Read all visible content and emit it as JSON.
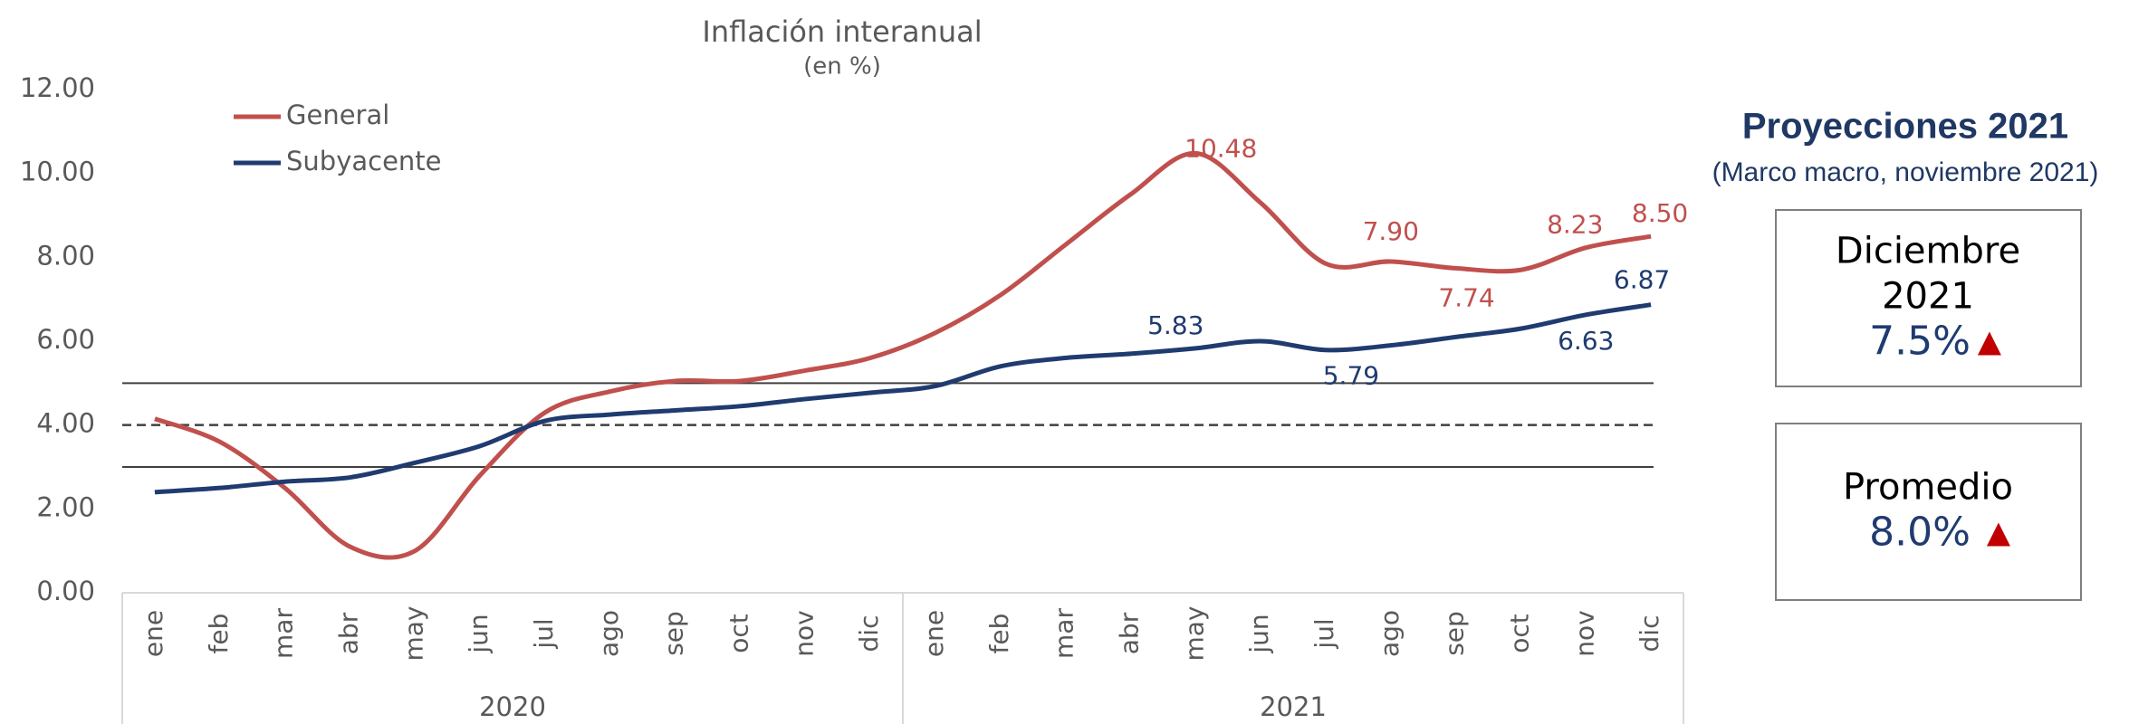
{
  "chart_data": {
    "type": "line",
    "title": "Inflación interanual",
    "subtitle": "(en %)",
    "categories": [
      "ene",
      "feb",
      "mar",
      "abr",
      "may",
      "jun",
      "jul",
      "ago",
      "sep",
      "oct",
      "nov",
      "dic",
      "ene",
      "feb",
      "mar",
      "abr",
      "may",
      "jun",
      "jul",
      "ago",
      "sep",
      "oct",
      "nov",
      "dic"
    ],
    "groups": [
      {
        "label": "2020",
        "count": 12
      },
      {
        "label": "2021",
        "count": 12
      }
    ],
    "series": [
      {
        "name": "General",
        "color": "#c0504d",
        "values": [
          4.15,
          3.6,
          2.5,
          1.1,
          1.0,
          2.8,
          4.3,
          4.8,
          5.05,
          5.05,
          5.3,
          5.6,
          6.2,
          7.1,
          8.3,
          9.5,
          10.48,
          9.3,
          7.85,
          7.9,
          7.74,
          7.7,
          8.23,
          8.5
        ],
        "value_labels": [
          null,
          null,
          null,
          null,
          null,
          null,
          null,
          null,
          null,
          null,
          null,
          null,
          null,
          null,
          null,
          null,
          "10.48",
          null,
          null,
          "7.90",
          "7.74",
          null,
          "8.23",
          "8.50"
        ]
      },
      {
        "name": "Subyacente",
        "color": "#1f3b70",
        "values": [
          2.4,
          2.5,
          2.65,
          2.75,
          3.1,
          3.5,
          4.1,
          4.25,
          4.35,
          4.45,
          4.62,
          4.77,
          4.93,
          5.4,
          5.6,
          5.7,
          5.83,
          6.0,
          5.79,
          5.9,
          6.1,
          6.3,
          6.63,
          6.87
        ],
        "value_labels": [
          null,
          null,
          null,
          null,
          null,
          null,
          null,
          null,
          null,
          null,
          null,
          null,
          null,
          null,
          null,
          null,
          "5.83",
          null,
          "5.79",
          null,
          null,
          null,
          "6.63",
          "6.87"
        ]
      }
    ],
    "reference_lines": [
      {
        "value": 5,
        "style": "solid"
      },
      {
        "value": 4,
        "style": "dashed"
      },
      {
        "value": 3,
        "style": "solid"
      }
    ],
    "ylim": [
      0,
      12
    ],
    "yticks": [
      {
        "value": 0,
        "label": "0.00"
      },
      {
        "value": 2,
        "label": "2.00"
      },
      {
        "value": 4,
        "label": "4.00"
      },
      {
        "value": 6,
        "label": "6.00"
      },
      {
        "value": 8,
        "label": "8.00"
      },
      {
        "value": 10,
        "label": "10.00"
      },
      {
        "value": 12,
        "label": "12.00"
      }
    ],
    "legend": "top-left",
    "grid": false
  },
  "projections": {
    "title": "Proyecciones 2021",
    "subtitle": "(Marco macro, noviembre 2021)",
    "boxes": [
      {
        "lines": [
          "Diciembre",
          "2021"
        ],
        "value": "7.5%"
      },
      {
        "lines": [
          "Promedio"
        ],
        "value": "8.0%"
      }
    ]
  }
}
